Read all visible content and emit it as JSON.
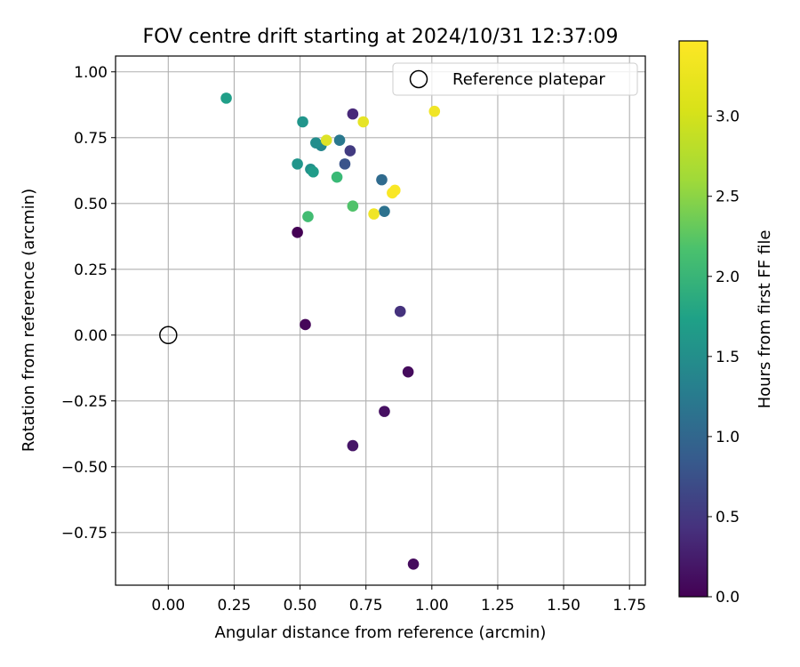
{
  "chart_data": {
    "type": "scatter",
    "title": "FOV centre drift starting at 2024/10/31 12:37:09",
    "xlabel": "Angular distance from reference (arcmin)",
    "ylabel": "Rotation from reference (arcmin)",
    "xlim": [
      -0.2,
      1.81
    ],
    "ylim": [
      -0.95,
      1.06
    ],
    "xticks": [
      0.0,
      0.25,
      0.5,
      0.75,
      1.0,
      1.25,
      1.5,
      1.75
    ],
    "xtick_labels": [
      "0.00",
      "0.25",
      "0.50",
      "0.75",
      "1.00",
      "1.25",
      "1.50",
      "1.75"
    ],
    "yticks": [
      -0.75,
      -0.5,
      -0.25,
      0.0,
      0.25,
      0.5,
      0.75,
      1.0
    ],
    "ytick_labels": [
      "−0.75",
      "−0.50",
      "−0.25",
      "0.00",
      "0.25",
      "0.50",
      "0.75",
      "1.00"
    ],
    "grid": true,
    "legend": {
      "placement": "top-right",
      "entries": [
        {
          "label": "Reference platepar",
          "marker": "open-circle"
        }
      ]
    },
    "reference_point": {
      "x": 0.0,
      "y": 0.0
    },
    "colorbar": {
      "label": "Hours from first FF file",
      "colormap": "viridis",
      "range": [
        0.0,
        3.47
      ],
      "ticks": [
        0.0,
        0.5,
        1.0,
        1.5,
        2.0,
        2.5,
        3.0
      ],
      "tick_labels": [
        "0.0",
        "0.5",
        "1.0",
        "1.5",
        "2.0",
        "2.5",
        "3.0"
      ]
    },
    "points": [
      {
        "x": 0.49,
        "y": 0.39,
        "hours": 0.0
      },
      {
        "x": 0.52,
        "y": 0.04,
        "hours": 0.05
      },
      {
        "x": 0.91,
        "y": -0.14,
        "hours": 0.1
      },
      {
        "x": 0.82,
        "y": -0.29,
        "hours": 0.15
      },
      {
        "x": 0.7,
        "y": -0.42,
        "hours": 0.2
      },
      {
        "x": 0.93,
        "y": -0.87,
        "hours": 0.1
      },
      {
        "x": 0.88,
        "y": 0.09,
        "hours": 0.5
      },
      {
        "x": 0.7,
        "y": 0.84,
        "hours": 0.4
      },
      {
        "x": 0.69,
        "y": 0.7,
        "hours": 0.6
      },
      {
        "x": 0.67,
        "y": 0.65,
        "hours": 0.9
      },
      {
        "x": 0.82,
        "y": 0.47,
        "hours": 1.3
      },
      {
        "x": 0.81,
        "y": 0.59,
        "hours": 1.2
      },
      {
        "x": 0.65,
        "y": 0.74,
        "hours": 1.4
      },
      {
        "x": 0.22,
        "y": 0.9,
        "hours": 1.95
      },
      {
        "x": 0.51,
        "y": 0.81,
        "hours": 1.8
      },
      {
        "x": 0.56,
        "y": 0.73,
        "hours": 1.7
      },
      {
        "x": 0.58,
        "y": 0.72,
        "hours": 1.6
      },
      {
        "x": 0.49,
        "y": 0.65,
        "hours": 1.8
      },
      {
        "x": 0.54,
        "y": 0.63,
        "hours": 1.75
      },
      {
        "x": 0.55,
        "y": 0.62,
        "hours": 1.9
      },
      {
        "x": 0.64,
        "y": 0.6,
        "hours": 2.35
      },
      {
        "x": 0.53,
        "y": 0.45,
        "hours": 2.4
      },
      {
        "x": 0.7,
        "y": 0.49,
        "hours": 2.5
      },
      {
        "x": 0.6,
        "y": 0.74,
        "hours": 3.3
      },
      {
        "x": 0.74,
        "y": 0.81,
        "hours": 3.35
      },
      {
        "x": 1.01,
        "y": 0.85,
        "hours": 3.4
      },
      {
        "x": 0.85,
        "y": 0.54,
        "hours": 3.45
      },
      {
        "x": 0.86,
        "y": 0.55,
        "hours": 3.45
      },
      {
        "x": 0.78,
        "y": 0.46,
        "hours": 3.4
      }
    ]
  }
}
